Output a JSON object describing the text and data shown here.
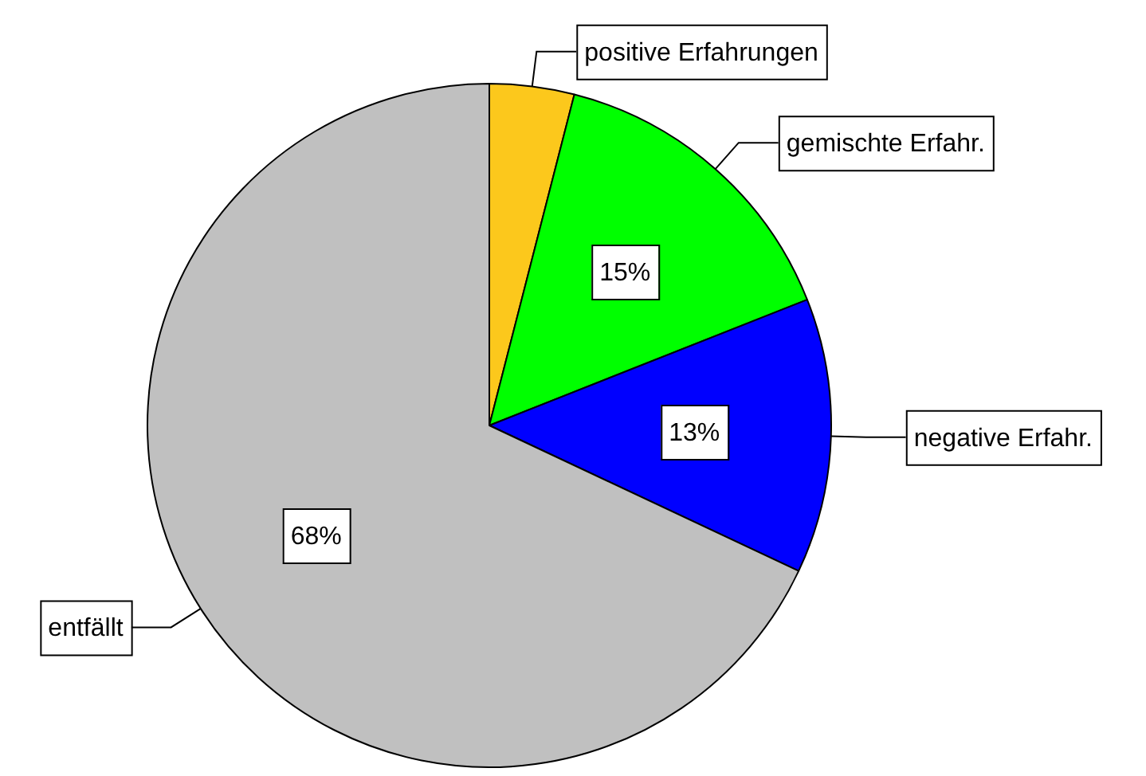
{
  "chart_data": {
    "type": "pie",
    "categories": [
      "positive Erfahrungen",
      "gemischte Erfahr.",
      "negative Erfahr.",
      "entfällt"
    ],
    "values": [
      4,
      15,
      13,
      68
    ],
    "colors": [
      "#fcc81c",
      "#00ff00",
      "#0000ff",
      "#c0c0c0"
    ],
    "value_labels": [
      null,
      "15%",
      "13%",
      "68%"
    ],
    "legend": false
  }
}
